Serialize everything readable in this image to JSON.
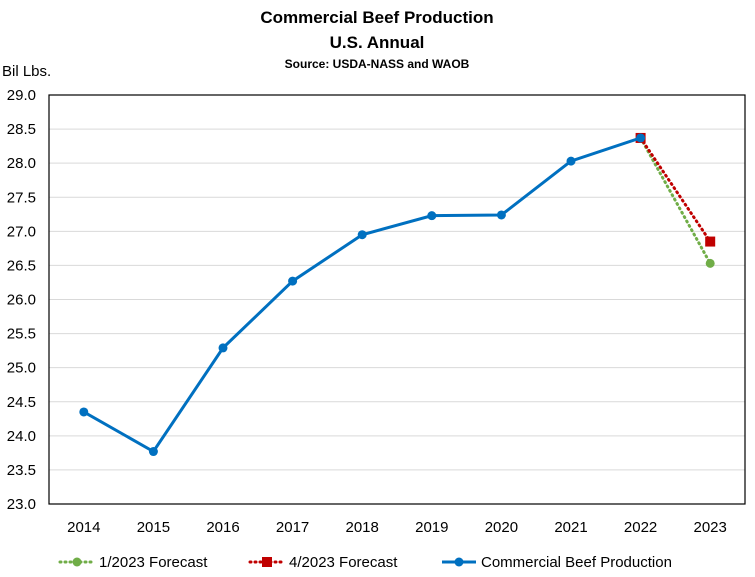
{
  "chart_data": {
    "type": "line",
    "title": "Commercial Beef Production",
    "subtitle": "U.S. Annual",
    "source": "Source: USDA-NASS  and WAOB",
    "ylabel": "Bil Lbs.",
    "xlabel": "",
    "ylim": [
      23.0,
      29.0
    ],
    "yticks": [
      "29.0",
      "28.5",
      "28.0",
      "27.5",
      "27.0",
      "26.5",
      "26.0",
      "25.5",
      "25.0",
      "24.5",
      "24.0",
      "23.5",
      "23.0"
    ],
    "categories": [
      "2014",
      "2015",
      "2016",
      "2017",
      "2018",
      "2019",
      "2020",
      "2021",
      "2022",
      "2023"
    ],
    "grid": true,
    "legend_position": "bottom",
    "series": [
      {
        "name": "1/2023 Forecast",
        "color": "#70AD47",
        "style": "dotted",
        "marker": "circle",
        "values": [
          null,
          null,
          null,
          null,
          null,
          null,
          null,
          null,
          28.37,
          26.53
        ]
      },
      {
        "name": "4/2023 Forecast",
        "color": "#C00000",
        "style": "dotted",
        "marker": "square",
        "values": [
          null,
          null,
          null,
          null,
          null,
          null,
          null,
          null,
          28.37,
          26.85
        ]
      },
      {
        "name": "Commercial Beef Production",
        "color": "#0070C0",
        "style": "solid",
        "marker": "circle",
        "values": [
          24.35,
          23.77,
          25.29,
          26.27,
          26.95,
          27.23,
          27.24,
          28.03,
          28.37,
          null
        ]
      }
    ]
  }
}
